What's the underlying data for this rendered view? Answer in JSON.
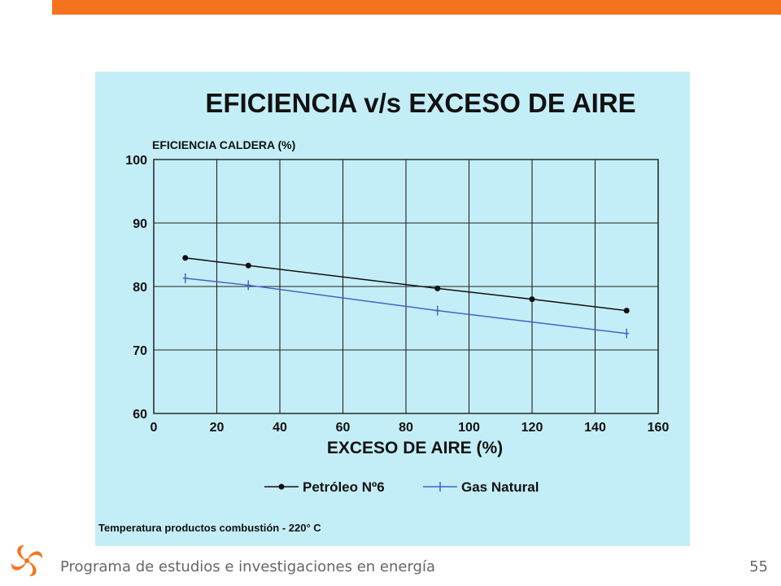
{
  "slide": {
    "footer_text": "Programa de estudios e investigaciones en energía",
    "page_number": "55",
    "accent_color": "#f5731e",
    "panel_color": "#c4eef7",
    "logo": "orange-swirl-logo-icon"
  },
  "chart_data": {
    "type": "line",
    "title": "EFICIENCIA v/s EXCESO DE AIRE",
    "ylabel": "EFICIENCIA CALDERA (%)",
    "xlabel": "EXCESO DE AIRE (%)",
    "xlim": [
      0,
      160
    ],
    "ylim": [
      60,
      100
    ],
    "x_ticks": [
      0,
      20,
      40,
      60,
      80,
      100,
      120,
      140,
      160
    ],
    "y_ticks": [
      60,
      70,
      80,
      90,
      100
    ],
    "grid": true,
    "legend_position": "bottom-center",
    "series": [
      {
        "name": "Petróleo Nº6",
        "color": "#111111",
        "marker": "dot",
        "x": [
          10,
          30,
          90,
          120,
          150
        ],
        "y": [
          84.5,
          83.3,
          79.7,
          78.0,
          76.2
        ]
      },
      {
        "name": "Gas Natural",
        "color": "#4a5fc8",
        "marker": "plus",
        "x": [
          10,
          30,
          90,
          150
        ],
        "y": [
          81.3,
          80.2,
          76.2,
          72.6
        ]
      }
    ],
    "annotation": "Temperatura productos combustión - 220° C"
  }
}
